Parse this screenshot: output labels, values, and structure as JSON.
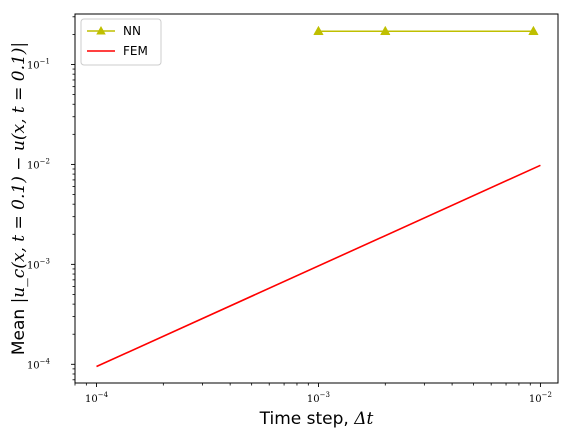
{
  "chart_data": {
    "type": "line",
    "xscale": "log",
    "yscale": "log",
    "xlim": [
      8e-05,
      0.012
    ],
    "ylim": [
      6.5e-05,
      0.32
    ],
    "xticks": [
      {
        "value": 0.0001,
        "base": "10",
        "exp": "−4"
      },
      {
        "value": 0.001,
        "base": "10",
        "exp": "−3"
      },
      {
        "value": 0.01,
        "base": "10",
        "exp": "−2"
      }
    ],
    "yticks": [
      {
        "value": 0.0001,
        "base": "10",
        "exp": "−4"
      },
      {
        "value": 0.001,
        "base": "10",
        "exp": "−3"
      },
      {
        "value": 0.01,
        "base": "10",
        "exp": "−2"
      },
      {
        "value": 0.1,
        "base": "10",
        "exp": "−1"
      }
    ],
    "xlabel": {
      "text": "Time step, ",
      "math": "Δt"
    },
    "ylabel": {
      "text": "Mean ",
      "math": "|u_c(x, t = 0.1) − u(x, t = 0.1)|"
    },
    "grid": false,
    "legend_position": "top-left",
    "series": [
      {
        "name": "NN",
        "color": "#bfbf00",
        "marker": "triangle-up",
        "x": [
          0.001,
          0.002,
          0.0093
        ],
        "y": [
          0.215,
          0.215,
          0.215
        ]
      },
      {
        "name": "FEM",
        "color": "#ff0000",
        "marker": "none",
        "x": [
          0.0001,
          0.01
        ],
        "y": [
          9.5e-05,
          0.0098
        ]
      }
    ]
  }
}
